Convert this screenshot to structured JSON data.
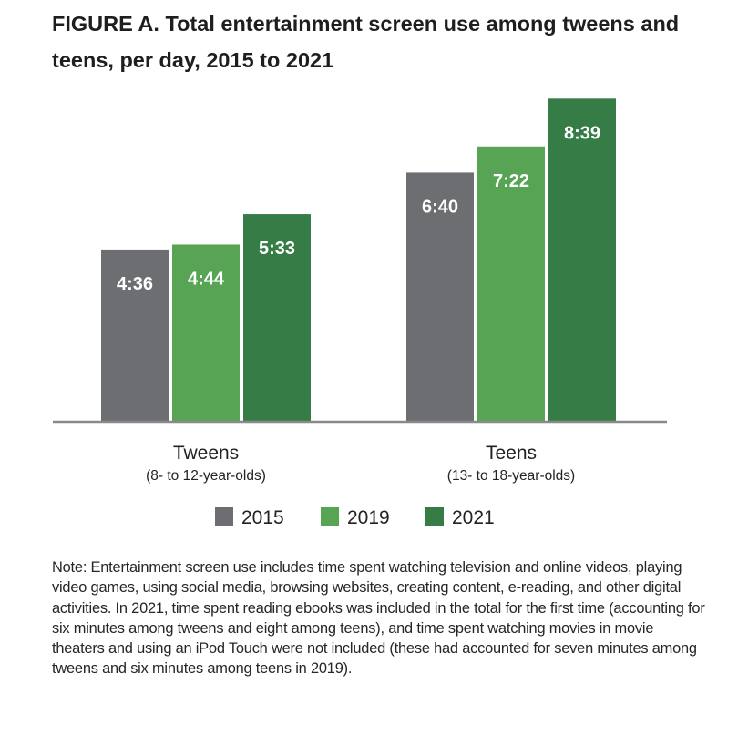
{
  "chart_data": {
    "type": "bar",
    "title": "FIGURE A. Total entertainment screen use among tweens and teens, per day, 2015 to 2021",
    "categories": [
      "Tweens",
      "Teens"
    ],
    "category_sublabels": [
      "(8- to 12-year-olds)",
      "(13- to 18-year-olds)"
    ],
    "series": [
      {
        "name": "2015",
        "values": [
          276,
          400
        ],
        "labels": [
          "4:36",
          "6:40"
        ],
        "color": "#6d6e72"
      },
      {
        "name": "2019",
        "values": [
          284,
          442
        ],
        "labels": [
          "4:44",
          "7:22"
        ],
        "color": "#57a454"
      },
      {
        "name": "2021",
        "values": [
          333,
          519
        ],
        "labels": [
          "5:33",
          "8:39"
        ],
        "color": "#357c47"
      }
    ],
    "value_unit": "minutes per day (shown as h:mm)",
    "ylim": [
      0,
      540
    ],
    "grid": false,
    "legend_position": "bottom",
    "note": "Note: Entertainment screen use includes time spent watching television and online videos, playing video games, using social media, browsing websites, creating content, e-reading, and other digital activities. In 2021, time spent reading ebooks was included in the total for the first time (accounting for six minutes among tweens and eight among teens), and time spent watching movies in movie theaters and using an iPod Touch were not included (these had accounted for seven minutes among tweens and six  minutes among teens in 2019)."
  }
}
